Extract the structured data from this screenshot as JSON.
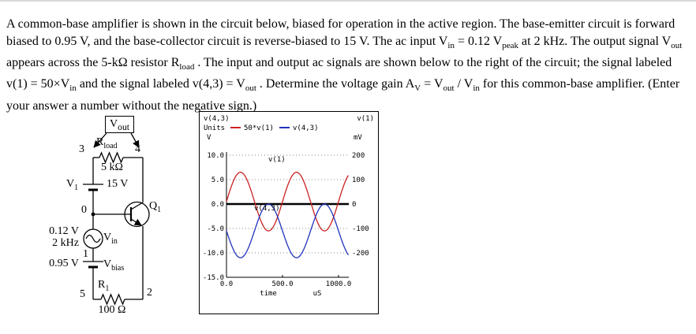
{
  "problem": {
    "segments": [
      {
        "text": "A common-base amplifier is shown in the circuit below, biased for operation in the active region.  The base-emitter circuit is forward biased to 0.95 V, and the base-collector circuit is reverse-biased to 15 V.  The ac input V"
      },
      {
        "sub": "in"
      },
      {
        "text": " = 0.12 V"
      },
      {
        "sub": "peak"
      },
      {
        "text": " at 2 kHz.  The output signal V"
      },
      {
        "sub": "out"
      },
      {
        "text": " appears across the 5-kΩ resistor R"
      },
      {
        "sub": "load"
      },
      {
        "text": " .  The input and output ac signals are shown below to the right of the circuit; the signal labeled v(1) = 50×V"
      },
      {
        "sub": "in"
      },
      {
        "text": " and the signal labeled v(4,3) = V"
      },
      {
        "sub": "out"
      },
      {
        "text": " .  Determine the voltage gain A"
      },
      {
        "sub": "V"
      },
      {
        "text": " = V"
      },
      {
        "sub": "out"
      },
      {
        "text": " / V"
      },
      {
        "sub": "in"
      },
      {
        "text": " for this common-base amplifier.   (Enter your answer a number without the negative sign.)"
      }
    ]
  },
  "circuit": {
    "labels": {
      "vout": {
        "main": "V",
        "sub": "out"
      },
      "node3": "3",
      "node4": "4",
      "rload": {
        "main": "R",
        "sub": "load"
      },
      "rload_value": "5 kΩ",
      "v1": {
        "main": "V",
        "sub": "1"
      },
      "v1_value": "15 V",
      "node0": "0",
      "q1": {
        "main": "Q",
        "sub": "1"
      },
      "ac_value_line1": "0.12 V",
      "ac_value_line2": "2 kHz",
      "vin": {
        "main": "V",
        "sub": "in"
      },
      "node1": "1",
      "vbias_value": "0.95 V",
      "vbias": {
        "main": "V",
        "sub": "bias"
      },
      "node5": "5",
      "node2": "2",
      "r1": {
        "main": "R",
        "sub": "1"
      },
      "r1_value": "100 Ω"
    }
  },
  "chart_data": {
    "type": "line",
    "x": {
      "label": "time",
      "units": "uS",
      "ticks": [
        0.0,
        500.0,
        1000.0
      ],
      "range": [
        0,
        1091
      ]
    },
    "y_left": {
      "label": "v(4,3)",
      "units": "V",
      "ticks": [
        10.0,
        5.0,
        0.0,
        -5.0,
        -10.0,
        -15.0
      ],
      "range": [
        -15,
        10
      ]
    },
    "y_right": {
      "label": "v(1)",
      "units": "mV",
      "ticks": [
        200,
        100,
        0,
        -100,
        -200
      ],
      "scale_mV_per_V": 20
    },
    "legend": {
      "prefix": "Units",
      "entries": [
        {
          "label": "50*v(1)",
          "color": "#cc2222"
        },
        {
          "label": "v(4,3)",
          "color": "#2233bb"
        }
      ],
      "position": "top"
    },
    "grid": "dotted-horizontal",
    "series": [
      {
        "name": "50*v(1)",
        "label_in_plot": "v(1)",
        "color": "#cc2222",
        "waveform": "sine",
        "amplitude_V": 6.0,
        "offset_V": 0.5,
        "period_us": 500,
        "phase_deg": 0
      },
      {
        "name": "v(4,3)",
        "label_in_plot": "v(4,3)",
        "color": "#2233bb",
        "waveform": "sine",
        "amplitude_V": 5.5,
        "offset_V": -5.5,
        "period_us": 500,
        "phase_deg": 180
      }
    ]
  }
}
